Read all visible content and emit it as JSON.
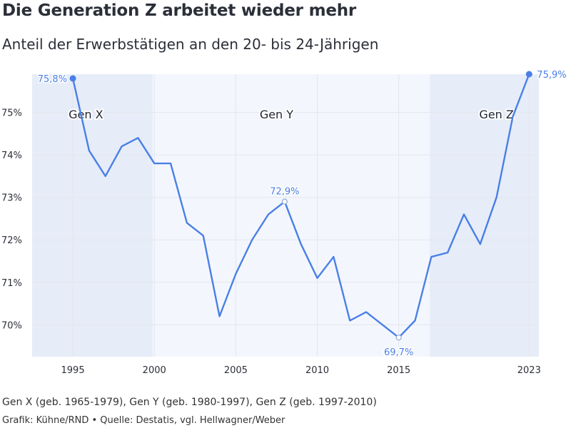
{
  "title": "Die Generation Z arbeitet wieder mehr",
  "subtitle": "Anteil der Erwerbstätigen an den 20- bis 24-Jährigen",
  "note": "Gen X (geb. 1965-1979), Gen Y (geb. 1980-1997), Gen Z (geb. 1997-2010)",
  "source": "Grafik: Kühne/RND • Quelle: Destatis, vgl. Hellwagner/Weber",
  "chart_data": {
    "type": "line",
    "x": [
      1995,
      1996,
      1997,
      1998,
      1999,
      2000,
      2001,
      2002,
      2003,
      2004,
      2005,
      2006,
      2007,
      2008,
      2009,
      2010,
      2011,
      2012,
      2013,
      2014,
      2015,
      2016,
      2017,
      2018,
      2019,
      2020,
      2021,
      2022,
      2023
    ],
    "series": [
      {
        "values": [
          75.8,
          74.1,
          73.5,
          74.2,
          74.4,
          73.8,
          73.8,
          72.4,
          72.1,
          70.2,
          71.2,
          72.0,
          72.6,
          72.9,
          71.9,
          71.1,
          71.6,
          70.1,
          70.3,
          70.0,
          69.7,
          70.1,
          71.6,
          71.7,
          72.6,
          71.9,
          73.0,
          74.9,
          75.9
        ]
      }
    ],
    "xlim": [
      1992.5,
      2023.6
    ],
    "ylim": [
      69.25,
      75.9
    ],
    "y_ticks": [
      70,
      71,
      72,
      73,
      74,
      75
    ],
    "y_tick_labels": [
      "70%",
      "71%",
      "72%",
      "73%",
      "74%",
      "75%"
    ],
    "x_ticks": [
      1995,
      2000,
      2005,
      2010,
      2015,
      2023
    ],
    "x_tick_labels": [
      "1995",
      "2000",
      "2005",
      "2010",
      "2015",
      "2023"
    ],
    "grid": true,
    "eras": [
      {
        "label": "Gen X",
        "from": 1992.5,
        "to": 1999.9,
        "label_x": 1995.8
      },
      {
        "label": "Gen Y",
        "from": 1999.9,
        "to": 2016.9,
        "label_x": 2007.5
      },
      {
        "label": "Gen Z",
        "from": 2016.9,
        "to": 2023.6,
        "label_x": 2021.0
      }
    ],
    "annotations": [
      {
        "x": 1995,
        "y": 75.8,
        "label": "75,8%",
        "marker": "filled",
        "pos": "left"
      },
      {
        "x": 2008,
        "y": 72.9,
        "label": "72,9%",
        "marker": "open",
        "pos": "above"
      },
      {
        "x": 2015,
        "y": 69.7,
        "label": "69,7%",
        "marker": "open",
        "pos": "below"
      },
      {
        "x": 2023,
        "y": 75.9,
        "label": "75,9%",
        "marker": "filled",
        "pos": "right"
      }
    ],
    "colors": {
      "line": "#4a7fe6",
      "era_dark": "#e6edf8",
      "era_light": "#f3f7fd",
      "grid": "#e3e6ec"
    }
  }
}
